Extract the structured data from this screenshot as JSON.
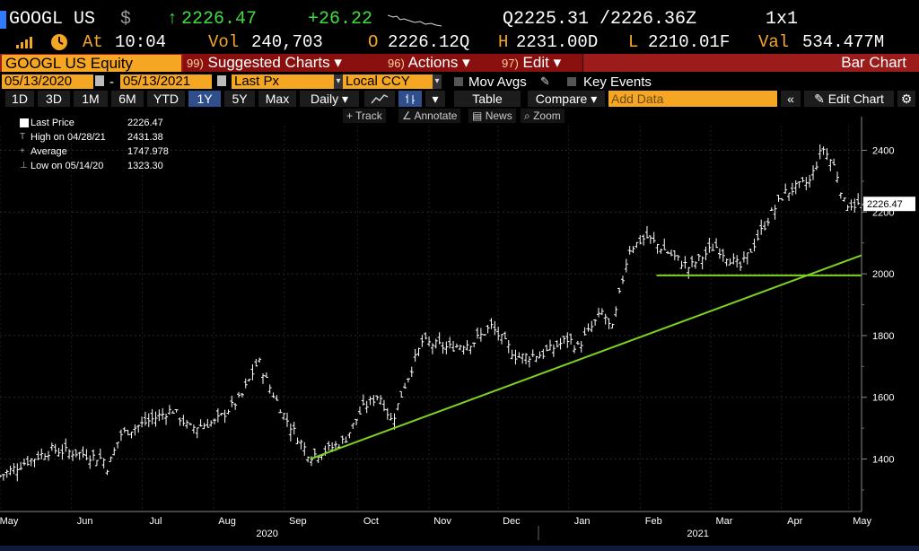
{
  "quote": {
    "ticker": "GOOGL US",
    "currency_symbol": "$",
    "arrow": "↑",
    "last": "2226.47",
    "change": "+26.22",
    "bid_label": "Q",
    "bid": "2225.31",
    "ask": "/2226.36",
    "ask_flag": "Z",
    "size": "1",
    "size_sep": "x",
    "size2": "1",
    "at_label": "At",
    "time": "10:04",
    "vol_label": "Vol",
    "volume": "240,703",
    "open_label": "O",
    "open": "2226.12",
    "open_flag": "Q",
    "high_label": "H",
    "high": "2231.00",
    "high_flag": "D",
    "low_label": "L",
    "low": "2210.01",
    "low_flag": "F",
    "val_label": "Val",
    "value": "534.477M"
  },
  "command_bar": {
    "security": "GOOGL US Equity",
    "buttons": [
      {
        "num": "99)",
        "label": "Suggested Charts",
        "caret": "▾"
      },
      {
        "num": "96)",
        "label": "Actions",
        "caret": "▾"
      },
      {
        "num": "97)",
        "label": "Edit",
        "caret": "▾"
      }
    ],
    "title": "Bar Chart"
  },
  "date_row": {
    "start": "05/13/2020",
    "dash": "-",
    "end": "05/13/2021",
    "field": "Last Px",
    "currency": "Local CCY",
    "mov_avgs": "Mov Avgs",
    "key_events": "Key Events"
  },
  "period_row": {
    "periods": [
      "1D",
      "3D",
      "1M",
      "6M",
      "YTD",
      "1Y",
      "5Y",
      "Max"
    ],
    "active": "1Y",
    "frequency": "Daily",
    "table": "Table",
    "compare": "Compare",
    "add_data_placeholder": "Add Data",
    "edit_chart": "Edit Chart"
  },
  "tools": [
    "Track",
    "Annotate",
    "News",
    "Zoom"
  ],
  "legend": [
    {
      "label": "Last Price",
      "value": "2226.47"
    },
    {
      "label": "High on 04/28/21",
      "value": "2431.38"
    },
    {
      "label": "Average",
      "value": "1747.978"
    },
    {
      "label": "Low on 05/14/20",
      "value": "1323.30"
    }
  ],
  "colors": {
    "amber": "#f5a623",
    "green_text": "#3fdc3f",
    "trendline": "#7ed321",
    "command_red": "#9c1c1c",
    "active_period": "#2f4e8c"
  },
  "chart_data": {
    "type": "bar",
    "subtype": "ohlc",
    "y_ticks": [
      1400,
      1600,
      1800,
      2000,
      2200,
      2400
    ],
    "ylim": [
      1230,
      2480
    ],
    "last_price_label": "2226.47",
    "x_month_labels": [
      "May",
      "Jun",
      "Jul",
      "Aug",
      "Sep",
      "Oct",
      "Nov",
      "Dec",
      "Jan",
      "Feb",
      "Mar",
      "Apr",
      "May"
    ],
    "x_year_labels": [
      "2020",
      "2021"
    ],
    "grid": true,
    "series": [
      {
        "close_approx": [
          [
            0.0,
            1345
          ],
          [
            0.03,
            1390
          ],
          [
            0.06,
            1430
          ],
          [
            0.09,
            1420
          ],
          [
            0.12,
            1400
          ],
          [
            0.125,
            1370
          ],
          [
            0.14,
            1480
          ],
          [
            0.17,
            1520
          ],
          [
            0.2,
            1560
          ],
          [
            0.22,
            1500
          ],
          [
            0.25,
            1520
          ],
          [
            0.28,
            1600
          ],
          [
            0.3,
            1720
          ],
          [
            0.31,
            1650
          ],
          [
            0.33,
            1540
          ],
          [
            0.35,
            1450
          ],
          [
            0.36,
            1410
          ],
          [
            0.38,
            1430
          ],
          [
            0.4,
            1460
          ],
          [
            0.42,
            1560
          ],
          [
            0.44,
            1610
          ],
          [
            0.455,
            1520
          ],
          [
            0.47,
            1640
          ],
          [
            0.49,
            1780
          ],
          [
            0.52,
            1760
          ],
          [
            0.55,
            1780
          ],
          [
            0.57,
            1830
          ],
          [
            0.6,
            1730
          ],
          [
            0.63,
            1740
          ],
          [
            0.66,
            1790
          ],
          [
            0.67,
            1760
          ],
          [
            0.7,
            1880
          ],
          [
            0.71,
            1810
          ],
          [
            0.73,
            2080
          ],
          [
            0.75,
            2120
          ],
          [
            0.78,
            2060
          ],
          [
            0.8,
            2020
          ],
          [
            0.83,
            2090
          ],
          [
            0.86,
            2020
          ],
          [
            0.89,
            2170
          ],
          [
            0.91,
            2260
          ],
          [
            0.94,
            2300
          ],
          [
            0.955,
            2410
          ],
          [
            0.97,
            2340
          ],
          [
            0.98,
            2230
          ],
          [
            1.0,
            2220
          ]
        ]
      }
    ],
    "trendlines": [
      {
        "from": [
          "Sep",
          1400
        ],
        "to": [
          "May",
          2060
        ]
      },
      {
        "level": 1995,
        "from": "Feb",
        "to": "May"
      }
    ]
  }
}
